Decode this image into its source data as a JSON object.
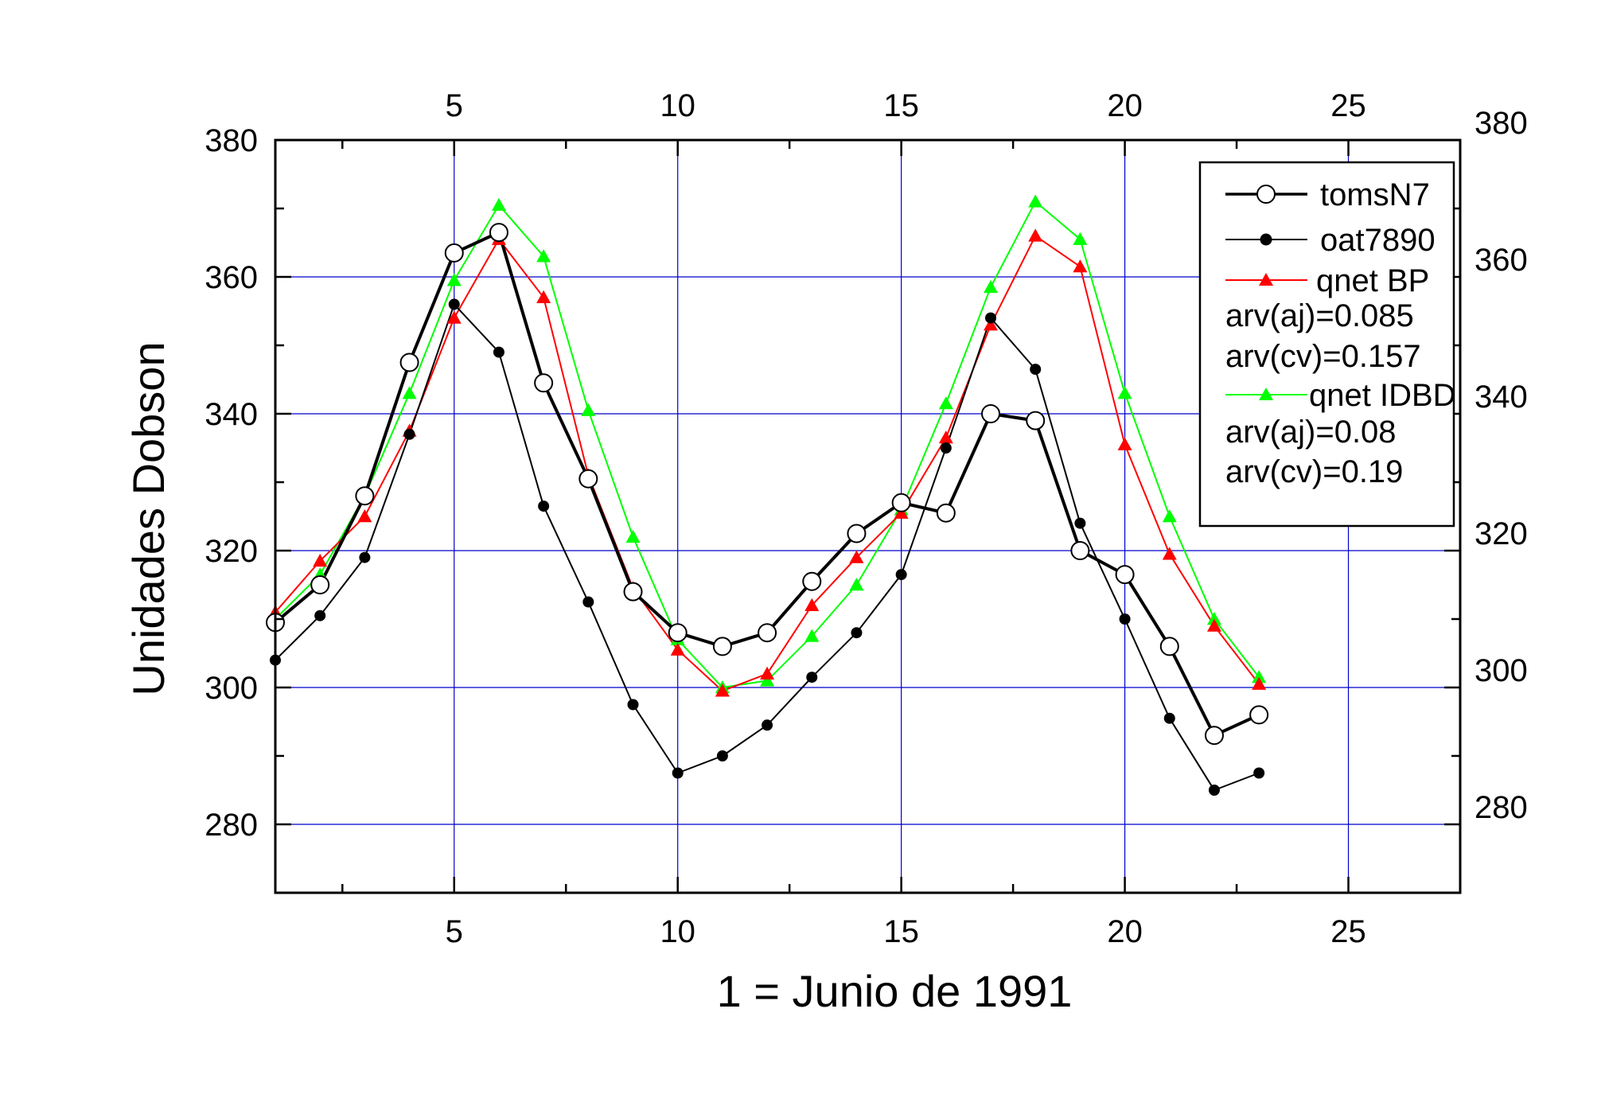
{
  "chart_data": {
    "type": "line",
    "title": "",
    "xlabel": "1 = Junio de 1991",
    "ylabel": "Unidades Dobson",
    "xlim": [
      1,
      27.5
    ],
    "ylim": [
      270,
      380
    ],
    "xticks": [
      5,
      10,
      15,
      20,
      25
    ],
    "yticks": [
      280,
      300,
      320,
      340,
      360,
      380
    ],
    "grid": true,
    "legend_position": "top-right",
    "x": [
      1,
      2,
      3,
      4,
      5,
      6,
      7,
      8,
      9,
      10,
      11,
      12,
      13,
      14,
      15,
      16,
      17,
      18,
      19,
      20,
      21,
      22,
      23
    ],
    "series": [
      {
        "name": "tomsN7",
        "color": "#000000",
        "marker": "open-circle",
        "values": [
          309.5,
          315,
          328,
          347.5,
          363.5,
          366.5,
          344.5,
          330.5,
          314,
          308,
          306,
          308,
          315.5,
          322.5,
          327,
          325.5,
          340,
          339,
          320,
          316.5,
          306,
          293,
          296
        ]
      },
      {
        "name": "oat7890",
        "color": "#000000",
        "marker": "filled-circle",
        "values": [
          304,
          310.5,
          319,
          337,
          356,
          349,
          326.5,
          312.5,
          297.5,
          287.5,
          290,
          294.5,
          301.5,
          308,
          316.5,
          335,
          354,
          346.5,
          324,
          310,
          295.5,
          285,
          287.5
        ]
      },
      {
        "name": "qnet BP",
        "color": "#ff0000",
        "marker": "triangle",
        "values": [
          311,
          318.5,
          325,
          337.5,
          354,
          365.5,
          357,
          331,
          314.5,
          305.5,
          299.5,
          302,
          312,
          319,
          325.5,
          336.5,
          353,
          366,
          361.5,
          335.5,
          319.5,
          309,
          300.5
        ]
      },
      {
        "name": "qnet IDBD",
        "color": "#00ff00",
        "marker": "triangle",
        "values": [
          310,
          316.5,
          328,
          343,
          359.5,
          370.5,
          363,
          340.5,
          322,
          307,
          300,
          301,
          307.5,
          315,
          326,
          341.5,
          358.5,
          371,
          365.5,
          343,
          325,
          310,
          301.5
        ]
      }
    ],
    "legend": {
      "entries": [
        "tomsN7",
        "oat7890",
        "qnet BP",
        "qnet IDBD"
      ],
      "stats": {
        "bp": [
          "arv(aj)=0.085",
          "arv(cv)=0.157"
        ],
        "idbd": [
          "arv(aj)=0.08",
          "arv(cv)=0.19"
        ]
      }
    },
    "colors": {
      "grid": "#0000cc",
      "axes": "#000000"
    }
  }
}
